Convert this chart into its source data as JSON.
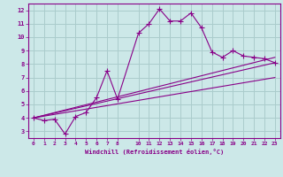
{
  "xlabel": "Windchill (Refroidissement éolien,°C)",
  "background_color": "#cce8e8",
  "line_color": "#880088",
  "grid_color": "#aacccc",
  "xlim": [
    -0.5,
    23.5
  ],
  "ylim": [
    2.5,
    12.5
  ],
  "xticks": [
    0,
    1,
    2,
    3,
    4,
    5,
    6,
    7,
    8,
    10,
    11,
    12,
    13,
    14,
    15,
    16,
    17,
    18,
    19,
    20,
    21,
    22,
    23
  ],
  "yticks": [
    3,
    4,
    5,
    6,
    7,
    8,
    9,
    10,
    11,
    12
  ],
  "line1_x": [
    0,
    1,
    2,
    3,
    4,
    5,
    6,
    7,
    8,
    10,
    11,
    12,
    13,
    14,
    15,
    16,
    17,
    18,
    19,
    20,
    21,
    22,
    23
  ],
  "line1_y": [
    4.0,
    3.8,
    3.9,
    2.8,
    4.1,
    4.4,
    5.5,
    7.5,
    5.4,
    10.3,
    11.0,
    12.1,
    11.2,
    11.2,
    11.8,
    10.7,
    8.9,
    8.5,
    9.0,
    8.6,
    8.5,
    8.4,
    8.1
  ],
  "line2_x": [
    0,
    23
  ],
  "line2_y": [
    4.0,
    8.5
  ],
  "line3_x": [
    0,
    23
  ],
  "line3_y": [
    4.0,
    8.1
  ],
  "line4_x": [
    0,
    23
  ],
  "line4_y": [
    4.0,
    7.0
  ]
}
